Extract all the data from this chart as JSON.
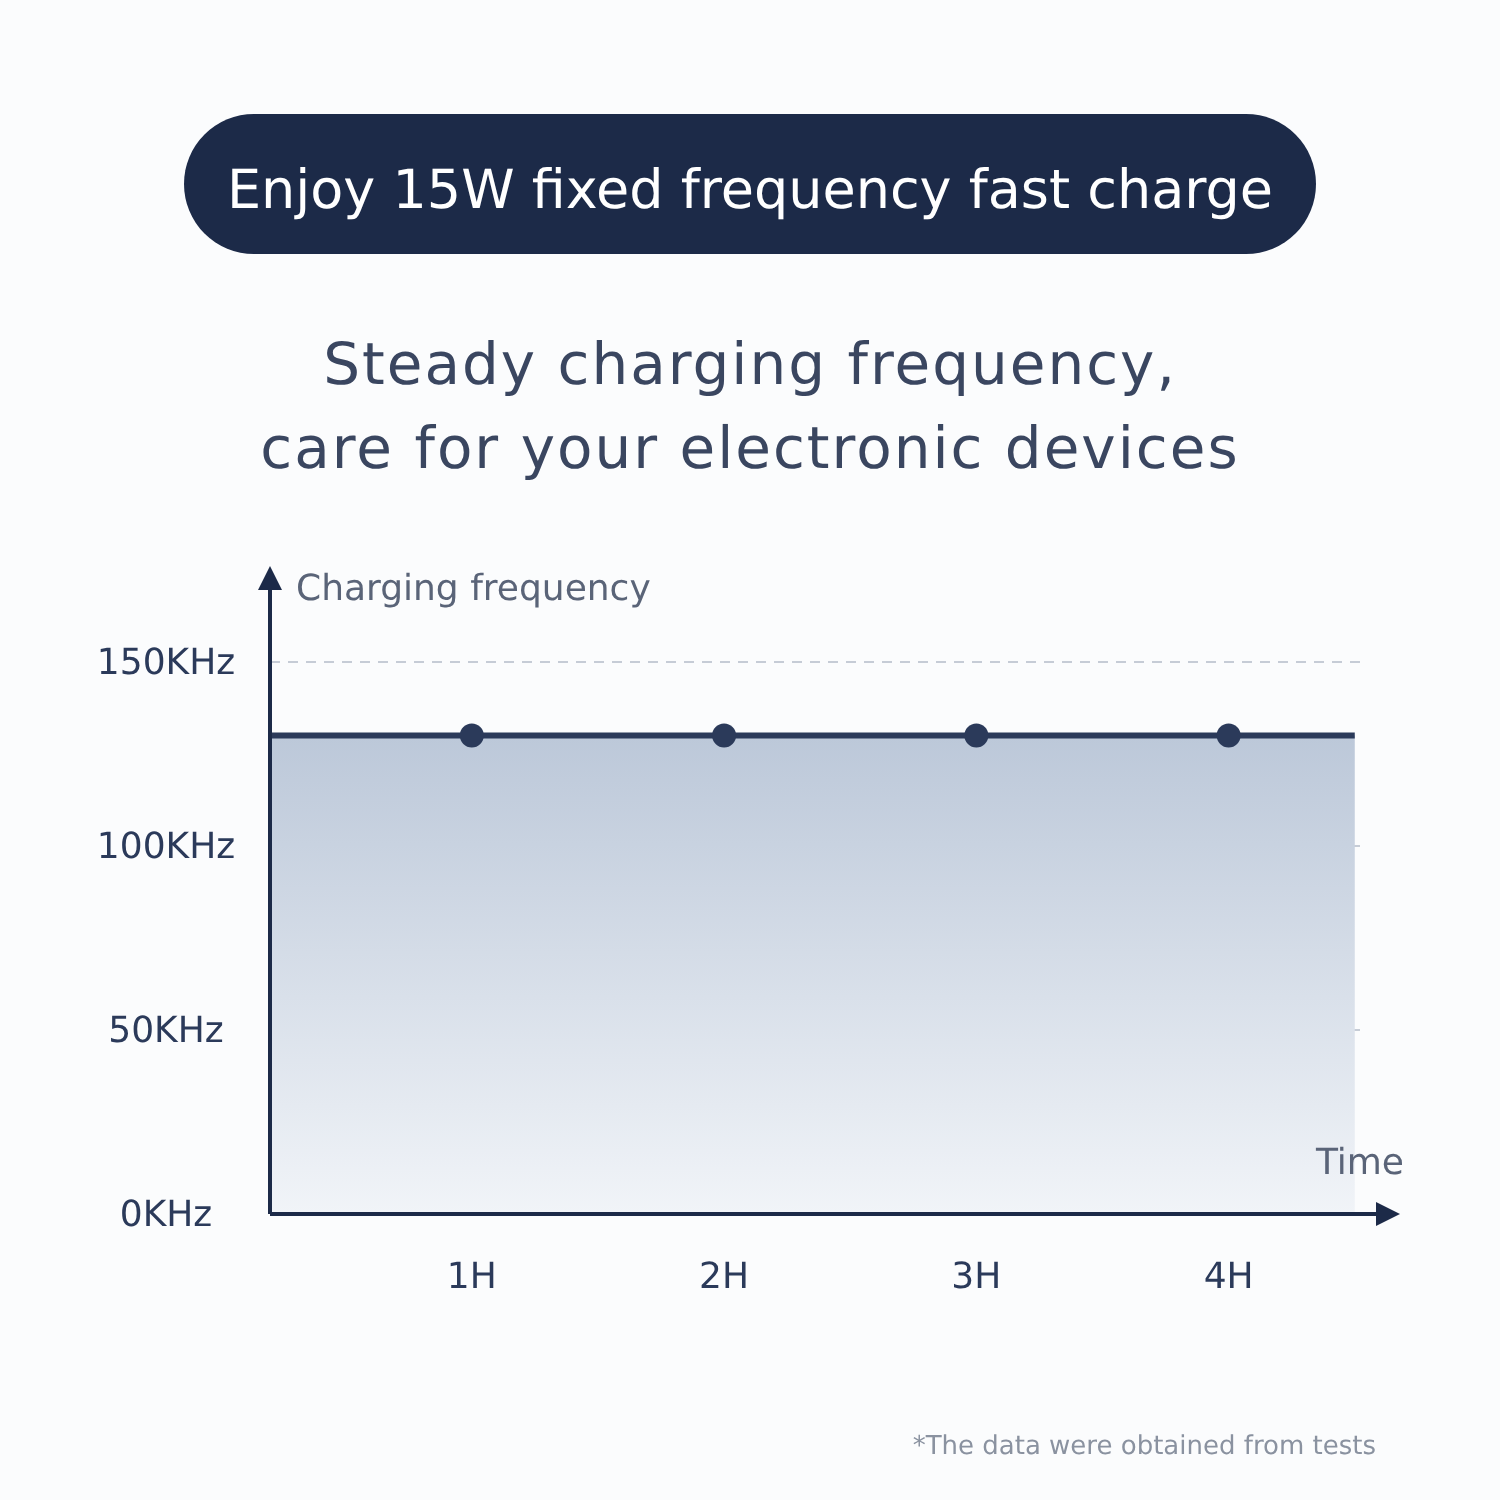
{
  "chart_data": {
    "type": "area",
    "title": "Enjoy 15W fixed frequency fast charge",
    "subtitle": "Steady charging frequency,\ncare for your electronic devices",
    "ylabel": "Charging frequency",
    "xlabel": "Time",
    "annotations": [
      "*The data were obtained from tests"
    ],
    "series": [
      {
        "color": "#2b3a5a",
        "x": [
          0.2,
          4.5
        ],
        "values": [
          130,
          130
        ]
      },
      {
        "type": "scatter",
        "color": "#2b3a5a",
        "marker": "circle",
        "x": [
          1,
          2,
          3,
          4
        ],
        "values": [
          130,
          130,
          130,
          130
        ]
      }
    ],
    "xlim": [
      0.2,
      4.6
    ],
    "xticks": [
      {
        "value": 1,
        "label": "1H"
      },
      {
        "value": 2,
        "label": "2H"
      },
      {
        "value": 3,
        "label": "3H"
      },
      {
        "value": 4,
        "label": "4H"
      }
    ],
    "ylim": [
      0,
      150
    ],
    "yticks": [
      {
        "value": 0,
        "label": "0KHz"
      },
      {
        "value": 50,
        "label": "50KHz"
      },
      {
        "value": 100,
        "label": "100KHz"
      },
      {
        "value": 150,
        "label": "150KHz"
      }
    ],
    "grid": "y"
  }
}
